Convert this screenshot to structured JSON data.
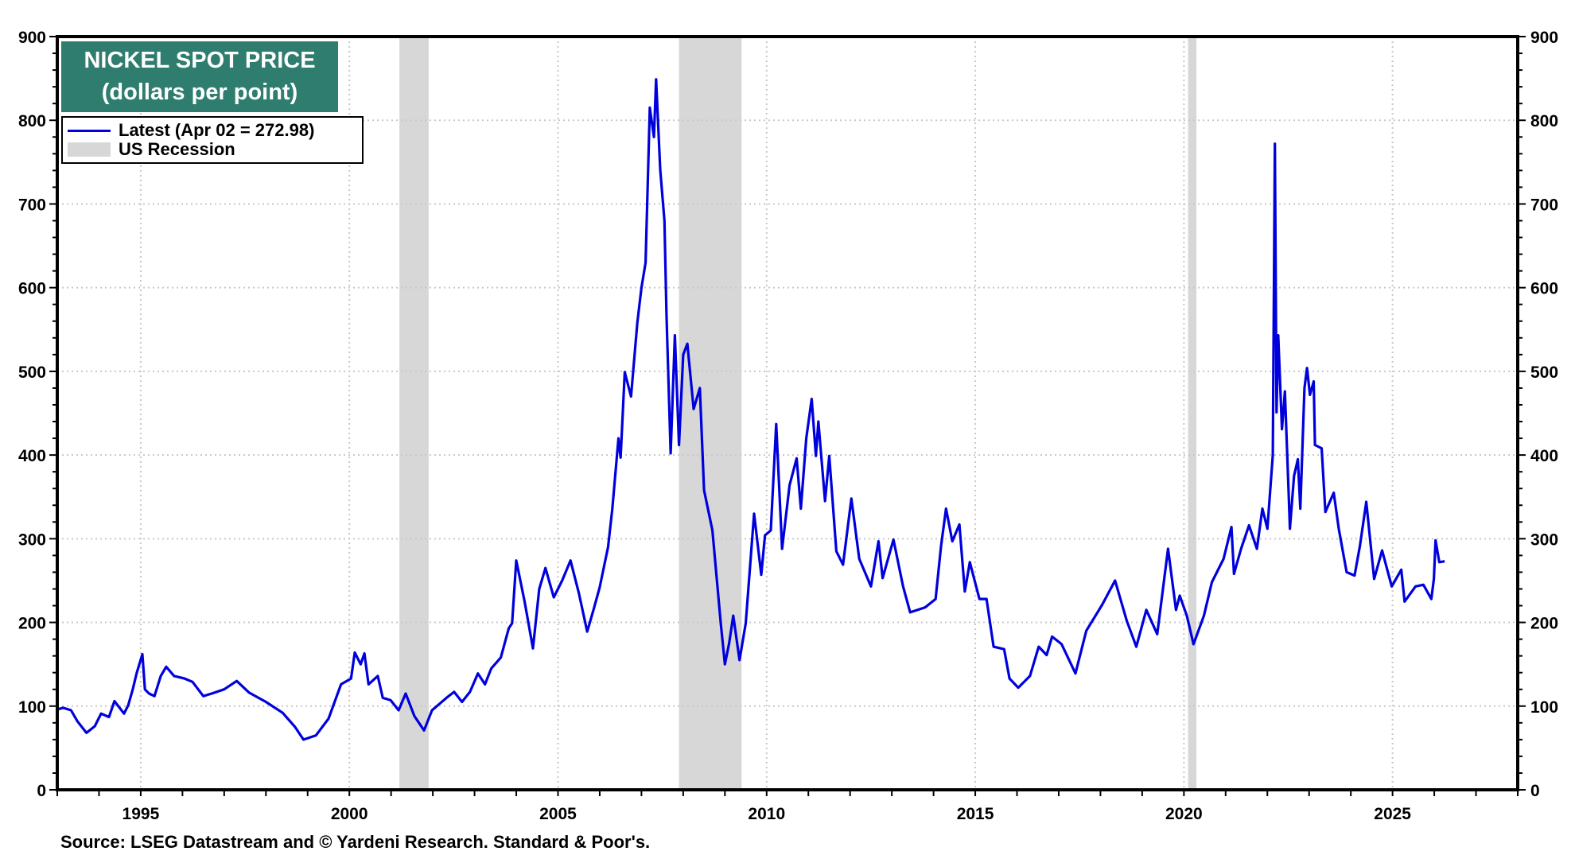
{
  "chart_data": {
    "type": "line",
    "title": "NICKEL SPOT PRICE",
    "subtitle": "(dollars per point)",
    "xlabel": "",
    "ylabel": "",
    "xlim": [
      1993,
      2028
    ],
    "ylim": [
      0,
      900
    ],
    "y_ticks": [
      0,
      100,
      200,
      300,
      400,
      500,
      600,
      700,
      800,
      900
    ],
    "x_ticks": [
      1995,
      2000,
      2005,
      2010,
      2015,
      2020,
      2025
    ],
    "grid": true,
    "dual_y_axis": true,
    "legend_position": "top-left",
    "legend": [
      {
        "label": "Latest (Apr 02 = 272.98)",
        "type": "line",
        "color": "#0000dd"
      },
      {
        "label": "US Recession",
        "type": "band",
        "color": "#d7d7d7"
      }
    ],
    "latest": {
      "date": "Apr 02",
      "value": 272.98
    },
    "recessions": [
      {
        "start": 2001.2,
        "end": 2001.9
      },
      {
        "start": 2007.9,
        "end": 2009.4
      },
      {
        "start": 2020.1,
        "end": 2020.3
      }
    ],
    "series": [
      {
        "name": "Nickel spot price",
        "color": "#0000dd",
        "x": [
          1993.0,
          1993.14,
          1993.33,
          1993.48,
          1993.7,
          1993.9,
          1994.05,
          1994.24,
          1994.37,
          1994.6,
          1994.7,
          1994.81,
          1994.9,
          1995.04,
          1995.1,
          1995.2,
          1995.33,
          1995.48,
          1995.61,
          1995.8,
          1996.05,
          1996.24,
          1996.5,
          1996.7,
          1997.0,
          1997.3,
          1997.6,
          1998.0,
          1998.4,
          1998.7,
          1998.9,
          1999.2,
          1999.5,
          1999.8,
          2000.04,
          2000.13,
          2000.27,
          2000.36,
          2000.46,
          2000.68,
          2000.8,
          2000.99,
          2001.18,
          2001.35,
          2001.56,
          2001.79,
          2001.98,
          2002.33,
          2002.51,
          2002.7,
          2002.89,
          2003.08,
          2003.25,
          2003.4,
          2003.63,
          2003.82,
          2003.9,
          2004.0,
          2004.2,
          2004.4,
          2004.55,
          2004.7,
          2004.9,
          2005.1,
          2005.3,
          2005.5,
          2005.7,
          2005.85,
          2006.0,
          2006.2,
          2006.3,
          2006.45,
          2006.5,
          2006.6,
          2006.75,
          2006.9,
          2007.0,
          2007.1,
          2007.2,
          2007.3,
          2007.35,
          2007.45,
          2007.55,
          2007.6,
          2007.7,
          2007.8,
          2007.9,
          2008.0,
          2008.1,
          2008.25,
          2008.4,
          2008.5,
          2008.7,
          2008.9,
          2009.0,
          2009.1,
          2009.2,
          2009.35,
          2009.5,
          2009.7,
          2009.87,
          2009.96,
          2010.1,
          2010.23,
          2010.37,
          2010.55,
          2010.72,
          2010.82,
          2010.95,
          2011.08,
          2011.18,
          2011.24,
          2011.4,
          2011.5,
          2011.67,
          2011.83,
          2012.03,
          2012.22,
          2012.5,
          2012.68,
          2012.78,
          2013.04,
          2013.27,
          2013.44,
          2013.8,
          2014.05,
          2014.18,
          2014.3,
          2014.45,
          2014.62,
          2014.75,
          2014.87,
          2015.1,
          2015.27,
          2015.44,
          2015.69,
          2015.82,
          2016.03,
          2016.31,
          2016.52,
          2016.71,
          2016.84,
          2017.07,
          2017.4,
          2017.66,
          2018.04,
          2018.35,
          2018.63,
          2018.86,
          2019.1,
          2019.36,
          2019.62,
          2019.81,
          2019.9,
          2020.07,
          2020.23,
          2020.48,
          2020.67,
          2020.95,
          2021.14,
          2021.2,
          2021.37,
          2021.56,
          2021.75,
          2021.88,
          2022.0,
          2022.13,
          2022.18,
          2022.22,
          2022.26,
          2022.35,
          2022.42,
          2022.51,
          2022.54,
          2022.64,
          2022.73,
          2022.79,
          2022.89,
          2022.95,
          2023.02,
          2023.11,
          2023.14,
          2023.3,
          2023.39,
          2023.59,
          2023.71,
          2023.9,
          2024.09,
          2024.22,
          2024.37,
          2024.56,
          2024.75,
          2024.98,
          2025.21,
          2025.29,
          2025.55,
          2025.74,
          2025.93,
          2025.99,
          2026.03,
          2026.12,
          2026.25
        ],
        "values": [
          96,
          98,
          95,
          82,
          68,
          76,
          91,
          87,
          106,
          91,
          101,
          120,
          139,
          162,
          120,
          115,
          112,
          136,
          147,
          136,
          133,
          129,
          112,
          115,
          120,
          130,
          116,
          105,
          92,
          75,
          60,
          65,
          85,
          126,
          133,
          164,
          150,
          163,
          126,
          136,
          110,
          107,
          95,
          115,
          88,
          71,
          95,
          110,
          117,
          105,
          117,
          139,
          126,
          145,
          158,
          193,
          199,
          274,
          225,
          169,
          240,
          265,
          230,
          250,
          274,
          235,
          189,
          215,
          242,
          290,
          335,
          420,
          397,
          499,
          470,
          558,
          600,
          630,
          815,
          780,
          849,
          741,
          680,
          567,
          402,
          543,
          412,
          520,
          533,
          455,
          480,
          358,
          310,
          199,
          150,
          175,
          208,
          155,
          199,
          330,
          257,
          304,
          310,
          437,
          288,
          364,
          396,
          336,
          420,
          467,
          399,
          440,
          345,
          399,
          285,
          269,
          348,
          276,
          243,
          297,
          253,
          299,
          243,
          212,
          218,
          228,
          291,
          336,
          297,
          317,
          237,
          272,
          228,
          228,
          171,
          168,
          133,
          122,
          136,
          171,
          161,
          183,
          174,
          139,
          190,
          221,
          250,
          202,
          171,
          215,
          186,
          288,
          215,
          232,
          208,
          174,
          208,
          248,
          276,
          314,
          258,
          288,
          316,
          288,
          336,
          312,
          400,
          772,
          451,
          543,
          431,
          476,
          355,
          312,
          375,
          395,
          336,
          480,
          504,
          472,
          488,
          412,
          408,
          332,
          355,
          312,
          260,
          256,
          292,
          344,
          252,
          286,
          243,
          263,
          225,
          243,
          245,
          228,
          252,
          298,
          272,
          273
        ]
      }
    ]
  },
  "header": {
    "title_line1": "NICKEL SPOT PRICE",
    "title_line2": "(dollars per point)"
  },
  "legend": {
    "series_label": "Latest (Apr 02 = 272.98)",
    "recession_label": "US Recession"
  },
  "footer": {
    "source": "Source: LSEG Datastream and © Yardeni Research. Standard & Poor's."
  },
  "colors": {
    "line": "#0000dd",
    "recession": "#d7d7d7",
    "title_bg": "#2e7d6e",
    "grid": "#c8c8c8",
    "axis": "#000000"
  }
}
